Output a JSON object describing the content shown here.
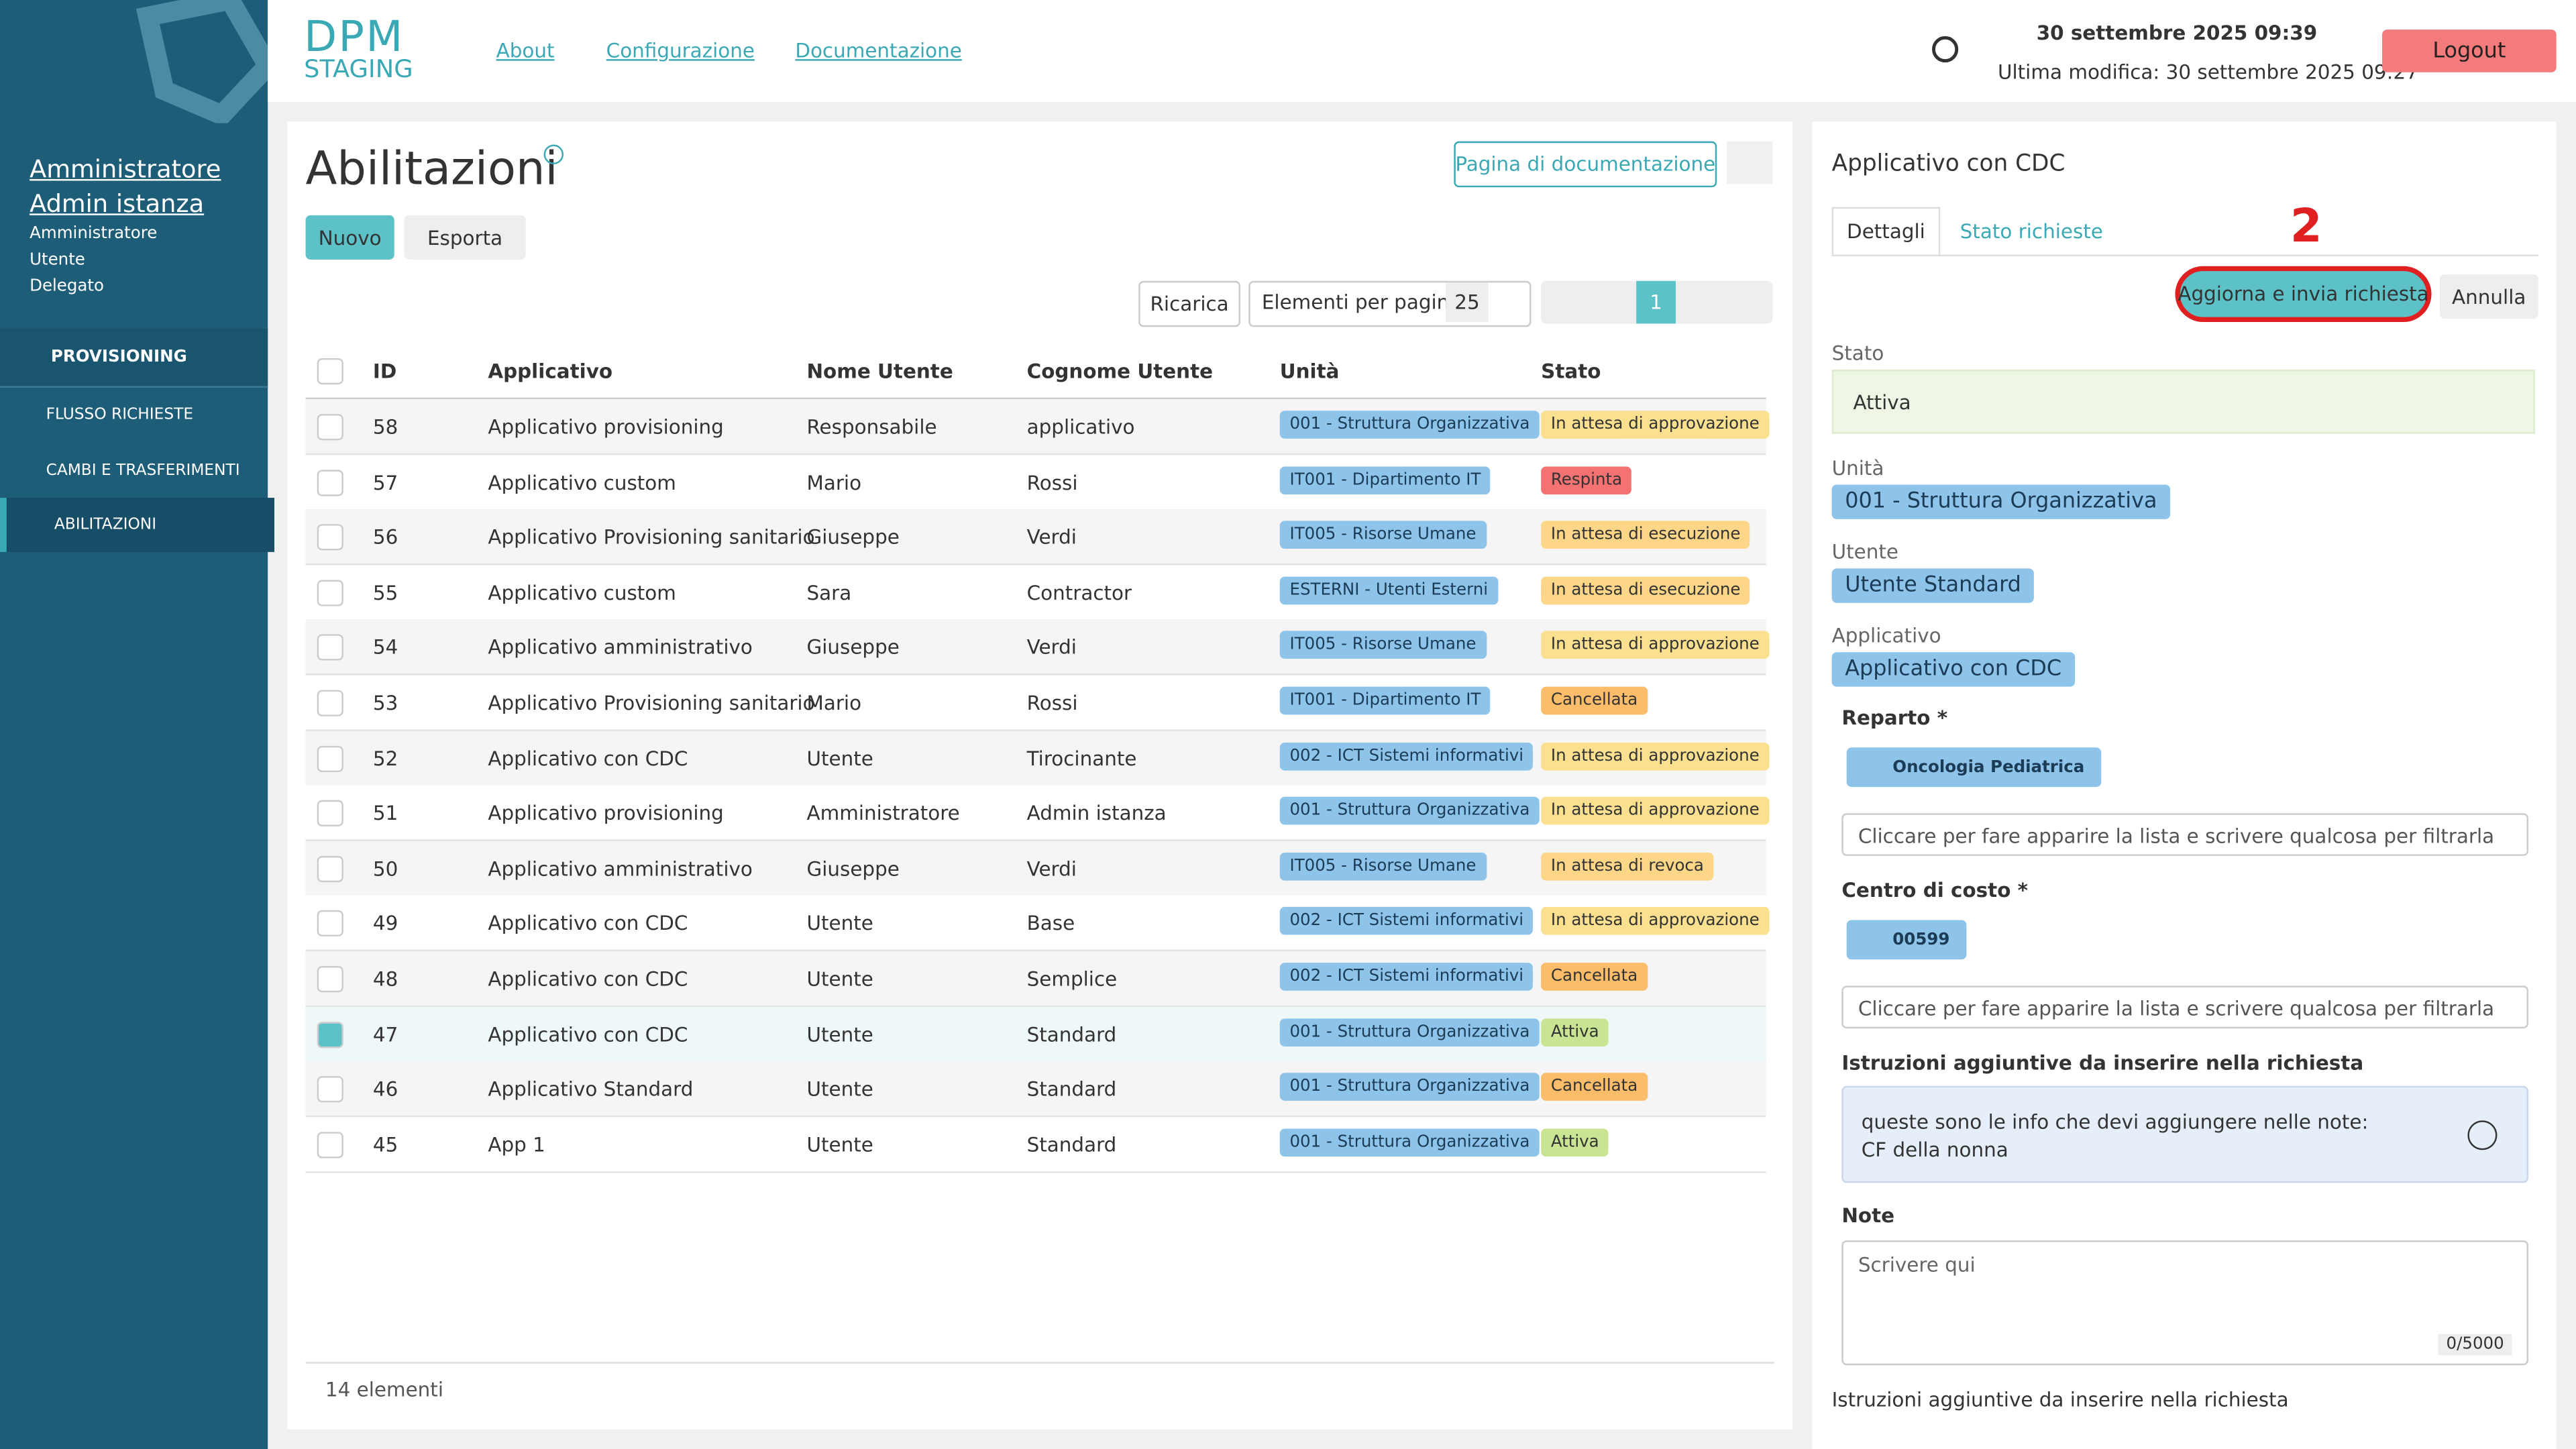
{
  "header": {
    "logo_top": "DPM",
    "logo_bottom": "STAGING",
    "nav": [
      "About",
      "Configurazione",
      "Documentazione"
    ],
    "datetime": "30 settembre 2025 09:39",
    "last_modified": "Ultima modifica: 30 settembre 2025 09:27",
    "logout": "Logout"
  },
  "sidebar": {
    "user_name": "Amministratore",
    "user_sub": "Admin istanza",
    "roles": [
      "Amministratore",
      "Utente",
      "Delegato"
    ],
    "section": "PROVISIONING",
    "items": [
      "FLUSSO RICHIESTE",
      "CAMBI E TRASFERIMENTI",
      "ABILITAZIONI"
    ],
    "active_item": 2
  },
  "main": {
    "title": "Abilitazioni",
    "doc_button": "Pagina di documentazione",
    "new_button": "Nuovo",
    "export_button": "Esporta",
    "reload_button": "Ricarica",
    "per_page_label": "Elementi per pagina",
    "per_page": "25",
    "page": "1",
    "columns": [
      "ID",
      "Applicativo",
      "Nome Utente",
      "Cognome Utente",
      "Unità",
      "Stato"
    ],
    "rows": [
      [
        "58",
        "Applicativo provisioning",
        "Responsabile",
        "applicativo",
        "001 - Struttura Organizzativa",
        "In attesa di approvazione"
      ],
      [
        "57",
        "Applicativo custom",
        "Mario",
        "Rossi",
        "IT001 - Dipartimento IT",
        "Respinta"
      ],
      [
        "56",
        "Applicativo Provisioning sanitario",
        "Giuseppe",
        "Verdi",
        "IT005 - Risorse Umane",
        "In attesa di esecuzione"
      ],
      [
        "55",
        "Applicativo custom",
        "Sara",
        "Contractor",
        "ESTERNI - Utenti Esterni",
        "In attesa di esecuzione"
      ],
      [
        "54",
        "Applicativo amministrativo",
        "Giuseppe",
        "Verdi",
        "IT005 - Risorse Umane",
        "In attesa di approvazione"
      ],
      [
        "53",
        "Applicativo Provisioning sanitario",
        "Mario",
        "Rossi",
        "IT001 - Dipartimento IT",
        "Cancellata"
      ],
      [
        "52",
        "Applicativo con CDC",
        "Utente",
        "Tirocinante",
        "002 - ICT Sistemi informativi",
        "In attesa di approvazione"
      ],
      [
        "51",
        "Applicativo provisioning",
        "Amministratore",
        "Admin istanza",
        "001 - Struttura Organizzativa",
        "In attesa di approvazione"
      ],
      [
        "50",
        "Applicativo amministrativo",
        "Giuseppe",
        "Verdi",
        "IT005 - Risorse Umane",
        "In attesa di revoca"
      ],
      [
        "49",
        "Applicativo con CDC",
        "Utente",
        "Base",
        "002 - ICT Sistemi informativi",
        "In attesa di approvazione"
      ],
      [
        "48",
        "Applicativo con CDC",
        "Utente",
        "Semplice",
        "002 - ICT Sistemi informativi",
        "Cancellata"
      ],
      [
        "47",
        "Applicativo con CDC",
        "Utente",
        "Standard",
        "001 - Struttura Organizzativa",
        "Attiva"
      ],
      [
        "46",
        "Applicativo Standard",
        "Utente",
        "Standard",
        "001 - Struttura Organizzativa",
        "Cancellata"
      ],
      [
        "45",
        "App 1",
        "Utente",
        "Standard",
        "001 - Struttura Organizzativa",
        "Attiva"
      ]
    ],
    "selected_row": 11,
    "status_colors": {
      "In attesa di approvazione": "#fbe08f",
      "Respinta": "#f47272",
      "In attesa di esecuzione": "#fdd688",
      "Cancellata": "#fbbd6a",
      "In attesa di revoca": "#fdd688",
      "Attiva": "#c9e594"
    },
    "footer": "14 elementi"
  },
  "panel": {
    "title": "Applicativo con CDC",
    "tabs": [
      "Dettagli",
      "Stato richieste"
    ],
    "annotation": "2",
    "submit": "Aggiorna e invia richiesta",
    "cancel": "Annulla",
    "stato_label": "Stato",
    "stato": "Attiva",
    "unit_label": "Unità",
    "unit": "001 - Struttura Organizzativa",
    "user_label": "Utente",
    "user": "Utente Standard",
    "app_label": "Applicativo",
    "app": "Applicativo con CDC",
    "reparto_label": "Reparto *",
    "reparto": "Oncologia Pediatrica",
    "select_placeholder": "Cliccare per fare apparire la lista e scrivere qualcosa per filtrarla",
    "cdc_label": "Centro di costo *",
    "cdc": "00599",
    "instr_label": "Istruzioni aggiuntive da inserire nella richiesta",
    "instr": "queste sono le info che devi aggiungere nelle note: CF della nonna",
    "note_label": "Note",
    "note_placeholder": "Scrivere qui",
    "counter": "0/5000",
    "instr_label2": "Istruzioni aggiuntive da inserire nella richiesta"
  }
}
